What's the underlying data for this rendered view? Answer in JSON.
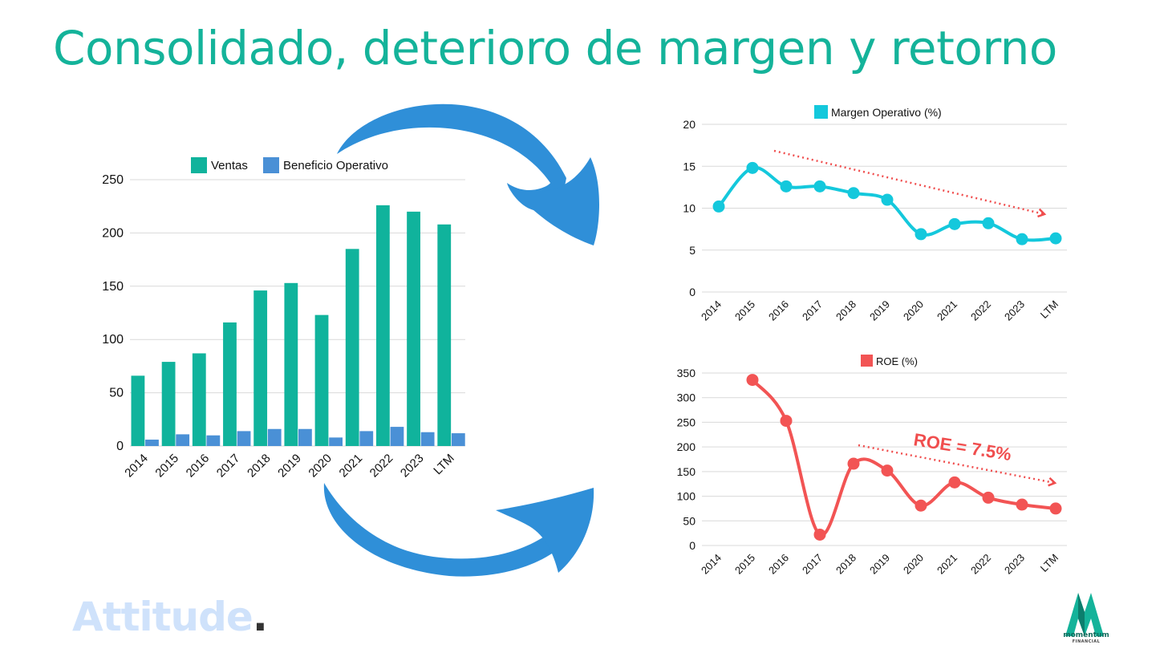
{
  "page": {
    "title": "Consolidado, deterioro de margen y retorno",
    "title_color": "#14b39a",
    "brand_left": "Attitude",
    "brand_left_dot": ".",
    "brand_left_color": "#cfe2fb",
    "brand_right": "momentum",
    "brand_right_sub": "FINANCIAL",
    "brand_right_color": "#14b39a",
    "arrow_color": "#2f8fd8"
  },
  "chart_data": [
    {
      "type": "bar",
      "categories": [
        "2014",
        "2015",
        "2016",
        "2017",
        "2018",
        "2019",
        "2020",
        "2021",
        "2022",
        "2023",
        "LTM"
      ],
      "series": [
        {
          "name": "Ventas",
          "color": "#10b39c",
          "values": [
            66,
            79,
            87,
            116,
            146,
            153,
            123,
            185,
            226,
            220,
            208
          ]
        },
        {
          "name": "Beneficio Operativo",
          "color": "#4a90d6",
          "values": [
            6,
            11,
            10,
            14,
            16,
            16,
            8,
            14,
            18,
            13,
            12
          ]
        }
      ],
      "ylim": [
        0,
        250
      ],
      "yticks": [
        0,
        50,
        100,
        150,
        200,
        250
      ],
      "grid": true,
      "legend": "top"
    },
    {
      "type": "line",
      "categories": [
        "2014",
        "2015",
        "2016",
        "2017",
        "2018",
        "2019",
        "2020",
        "2021",
        "2022",
        "2023",
        "LTM"
      ],
      "series": [
        {
          "name": "Margen Operativo (%)",
          "color": "#14c8dc",
          "values": [
            10.2,
            14.8,
            12.6,
            12.6,
            11.8,
            11.0,
            6.9,
            8.1,
            8.2,
            6.3,
            6.4
          ]
        }
      ],
      "ylim": [
        0,
        20
      ],
      "yticks": [
        0,
        5,
        10,
        15,
        20
      ],
      "grid": true,
      "legend": "top",
      "trend_color": "#f04e4e"
    },
    {
      "type": "line",
      "categories": [
        "2014",
        "2015",
        "2016",
        "2017",
        "2018",
        "2019",
        "2020",
        "2021",
        "2022",
        "2023",
        "LTM"
      ],
      "series": [
        {
          "name": "ROE (%)",
          "color": "#f25454",
          "values": [
            null,
            336,
            253,
            22,
            166,
            152,
            81,
            128,
            97,
            83,
            75
          ]
        }
      ],
      "ylim": [
        0,
        350
      ],
      "yticks": [
        0,
        50,
        100,
        150,
        200,
        250,
        300,
        350
      ],
      "grid": true,
      "legend": "top",
      "annotation": "ROE = 7.5%",
      "trend_color": "#f04e4e"
    }
  ]
}
